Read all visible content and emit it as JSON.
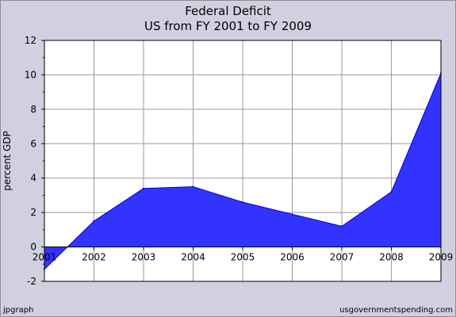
{
  "chart_data": {
    "type": "area",
    "title": "Federal Deficit",
    "subtitle": "US from FY 2001 to FY 2009",
    "xlabel": "",
    "ylabel": "percent GDP",
    "categories": [
      "2001",
      "2002",
      "2003",
      "2004",
      "2005",
      "2006",
      "2007",
      "2008",
      "2009"
    ],
    "series": [
      {
        "values": [
          -1.3,
          1.5,
          3.4,
          3.5,
          2.6,
          1.9,
          1.2,
          3.2,
          10.1
        ]
      }
    ],
    "ylim": [
      -2,
      12
    ],
    "yticks": [
      -2,
      0,
      2,
      4,
      6,
      8,
      10,
      12
    ],
    "grid": true,
    "colors": {
      "fill": "#3333ff",
      "plot_bg": "#ffffff",
      "frame_bg": "#d0d0e0",
      "grid": "#999999"
    }
  },
  "footer": {
    "left": "jpgraph",
    "right": "usgovernmentspending.com"
  }
}
